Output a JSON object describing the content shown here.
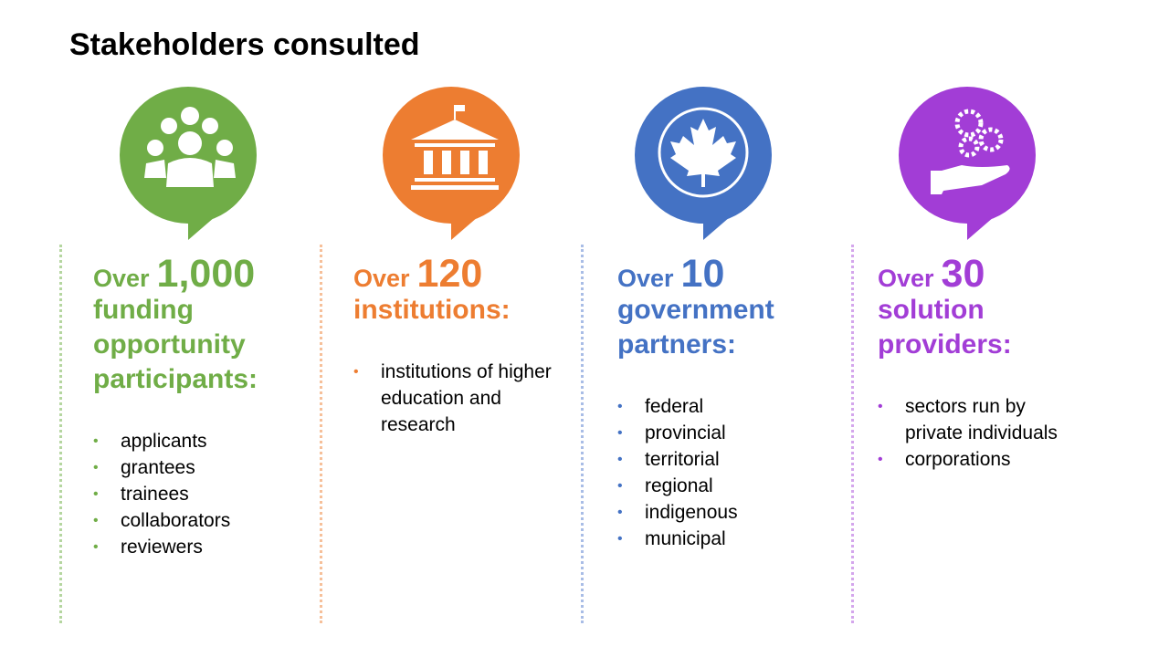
{
  "title": "Stakeholders consulted",
  "columns": [
    {
      "prefix": "Over",
      "number": "1,000",
      "heading": "funding opportunity participants:",
      "items": [
        "applicants",
        "grantees",
        "trainees",
        "collaborators",
        "reviewers"
      ]
    },
    {
      "prefix": "Over",
      "number": "120",
      "heading": "institutions:",
      "items": [
        "institutions of higher education and research"
      ]
    },
    {
      "prefix": "Over",
      "number": "10",
      "heading": "government partners:",
      "items": [
        "federal",
        "provincial",
        "territorial",
        "regional",
        "indigenous",
        "municipal"
      ]
    },
    {
      "prefix": "Over",
      "number": "30",
      "heading": "solution providers:",
      "items": [
        "sectors run by private individuals",
        "corporations"
      ]
    }
  ]
}
